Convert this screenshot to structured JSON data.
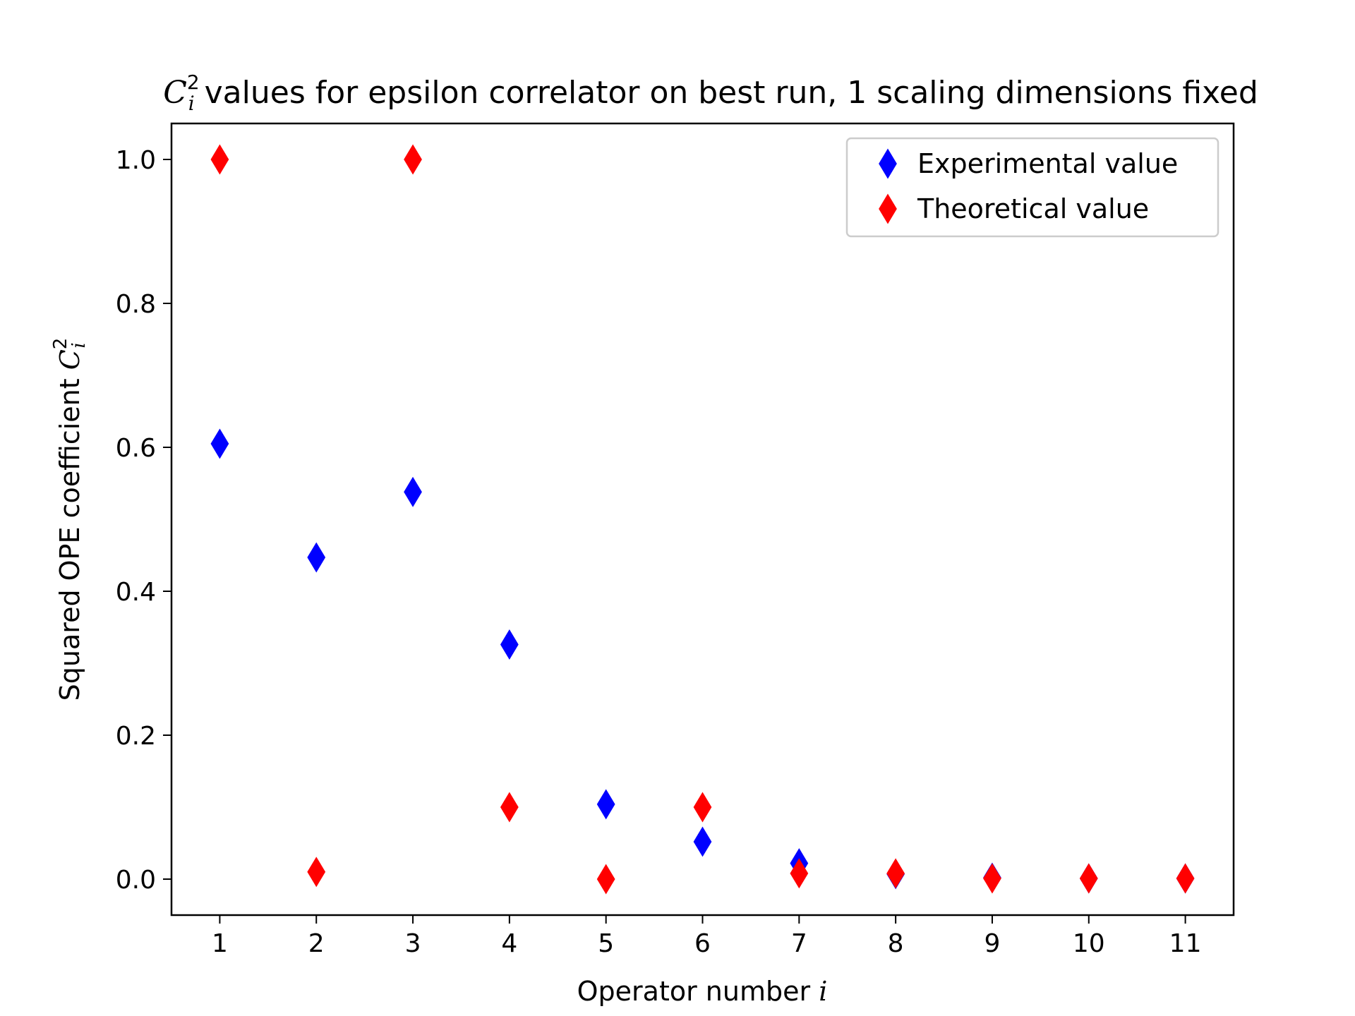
{
  "chart_data": {
    "type": "scatter",
    "title": {
      "symbol": "C",
      "subscript": "i",
      "superscript": "2",
      "text": " values for epsilon correlator on best run, 1 scaling dimensions fixed"
    },
    "xlabel": {
      "text": "Operator number ",
      "math": "i"
    },
    "ylabel": {
      "text": "Squared OPE coefficient ",
      "symbol": "C",
      "subscript": "i",
      "superscript": "2"
    },
    "x": [
      1,
      2,
      3,
      4,
      5,
      6,
      7,
      8,
      9,
      10,
      11
    ],
    "xlim": [
      0.5,
      11.5
    ],
    "ylim": [
      -0.05,
      1.05
    ],
    "xticks": [
      "1",
      "2",
      "3",
      "4",
      "5",
      "6",
      "7",
      "8",
      "9",
      "10",
      "11"
    ],
    "yticks": [
      "0.0",
      "0.2",
      "0.4",
      "0.6",
      "0.8",
      "1.0"
    ],
    "series": [
      {
        "name": "Experimental value",
        "color": "#0000ff",
        "marker": "thin-diamond",
        "values": [
          0.605,
          0.447,
          0.538,
          0.326,
          0.104,
          0.052,
          0.022,
          0.007,
          0.002,
          0.001,
          0.001
        ]
      },
      {
        "name": "Theoretical value",
        "color": "#ff0000",
        "marker": "thin-diamond",
        "values": [
          1.0,
          0.01,
          1.0,
          0.1,
          0.0,
          0.1,
          0.008,
          0.008,
          0.001,
          0.001,
          0.001
        ]
      }
    ],
    "legend_position": "top-right",
    "grid": false
  }
}
